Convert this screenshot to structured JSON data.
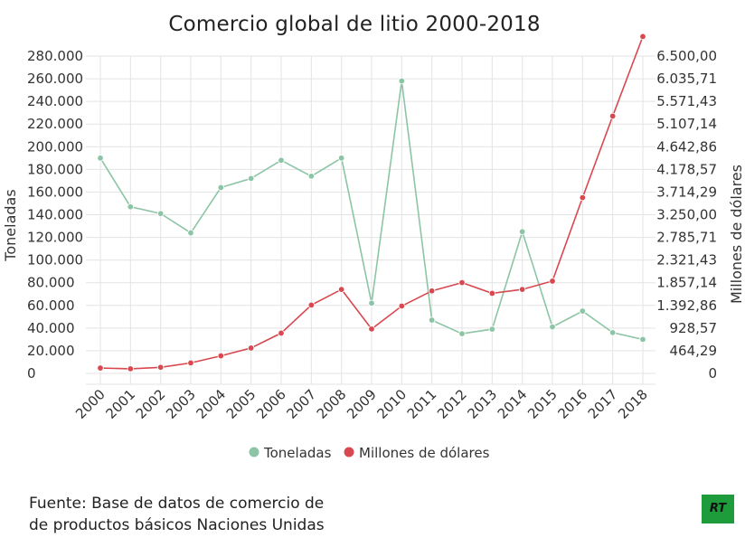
{
  "chart_data": {
    "type": "line",
    "title": "Comercio global de litio 2000-2018",
    "categories": [
      "2000",
      "2001",
      "2002",
      "2003",
      "2004",
      "2005",
      "2006",
      "2007",
      "2008",
      "2009",
      "2010",
      "2011",
      "2012",
      "2013",
      "2014",
      "2015",
      "2016",
      "2017",
      "2018"
    ],
    "series": [
      {
        "name": "Toneladas",
        "axis": "left",
        "color": "#8cc5a6",
        "values": [
          190000,
          147000,
          141000,
          124000,
          164000,
          172000,
          188000,
          174000,
          190000,
          62000,
          258000,
          47000,
          35000,
          39000,
          125000,
          41000,
          55000,
          36000,
          30000
        ]
      },
      {
        "name": "Millones de dólares",
        "axis": "right",
        "color": "#d9474f",
        "values": [
          110,
          95,
          125,
          215,
          360,
          520,
          825,
          1400,
          1720,
          910,
          1380,
          1690,
          1860,
          1640,
          1720,
          1890,
          3600,
          5270,
          6900
        ]
      }
    ],
    "ylabel_left": "Toneladas",
    "ylabel_right": "Millones de dólares",
    "ylim_left": [
      0,
      280000
    ],
    "ylim_right": [
      0,
      6500
    ],
    "left_ticks": [
      "0",
      "20.000",
      "40.000",
      "60.000",
      "80.000",
      "100.000",
      "120.000",
      "140.000",
      "160.000",
      "180.000",
      "200.000",
      "220.000",
      "240.000",
      "260.000",
      "280.000"
    ],
    "right_ticks": [
      "0",
      "464,29",
      "928,57",
      "1.392,86",
      "1.857,14",
      "2.321,43",
      "2.785,71",
      "3.250,00",
      "3.714,29",
      "4.178,57",
      "4.642,86",
      "5.107,14",
      "5.571,43",
      "6.035,71",
      "6.500,00"
    ],
    "grid": true,
    "legend": "bottom"
  },
  "source": {
    "line1": "Fuente: Base de datos de comercio de",
    "line2": "de productos básicos Naciones Unidas"
  },
  "logo": {
    "text": "RT",
    "color": "#1e9b3a"
  }
}
